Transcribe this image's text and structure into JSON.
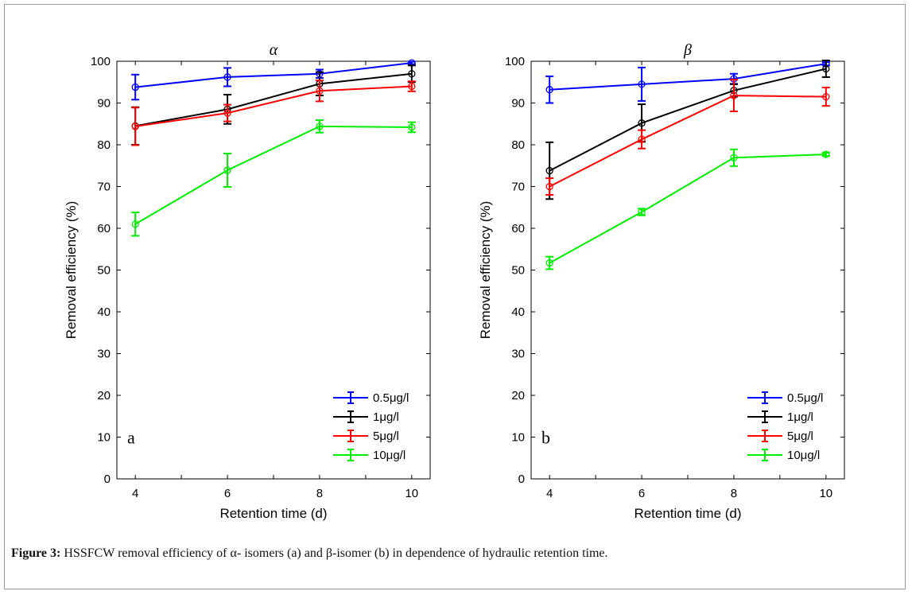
{
  "caption": {
    "label": "Figure 3:",
    "text": " HSSFCW removal efficiency of α- isomers (a) and β-isomer (b) in dependence of hydraulic retention time."
  },
  "colors": {
    "s1": "#0000ff",
    "s2": "#000000",
    "s3": "#ff0000",
    "s4": "#00ee00"
  },
  "chart_data": [
    {
      "type": "line",
      "title": "α",
      "panel_label": "a",
      "xlabel": "Retention time (d)",
      "ylabel": "Removal efficiency (%)",
      "xlim": [
        3.6,
        10.4
      ],
      "ylim": [
        0,
        100
      ],
      "xticks": [
        4,
        6,
        8,
        10
      ],
      "yticks": [
        0,
        10,
        20,
        30,
        40,
        50,
        60,
        70,
        80,
        90,
        100
      ],
      "legend_position": "bottom-right",
      "grid": false,
      "x": [
        4,
        6,
        8,
        10
      ],
      "series": [
        {
          "name": "0.5μg/l",
          "color": "#0000ff",
          "values": [
            93.8,
            96.2,
            97.0,
            99.6
          ],
          "errors": [
            3.0,
            2.2,
            1.0,
            0.3
          ]
        },
        {
          "name": "1μg/l",
          "color": "#000000",
          "values": [
            84.5,
            88.5,
            94.6,
            97.0
          ],
          "errors": [
            4.5,
            3.5,
            2.8,
            2.0
          ]
        },
        {
          "name": "5μg/l",
          "color": "#ff0000",
          "values": [
            84.4,
            87.6,
            92.9,
            94.0
          ],
          "errors": [
            4.5,
            2.0,
            2.5,
            1.2
          ]
        },
        {
          "name": "10μg/l",
          "color": "#00ee00",
          "values": [
            61.0,
            73.9,
            84.4,
            84.2
          ],
          "errors": [
            2.8,
            4.0,
            1.5,
            1.2
          ]
        }
      ]
    },
    {
      "type": "line",
      "title": "β",
      "panel_label": "b",
      "xlabel": "Retention time (d)",
      "ylabel": "Removal efficiency (%)",
      "xlim": [
        3.6,
        10.4
      ],
      "ylim": [
        0,
        100
      ],
      "xticks": [
        4,
        6,
        8,
        10
      ],
      "yticks": [
        0,
        10,
        20,
        30,
        40,
        50,
        60,
        70,
        80,
        90,
        100
      ],
      "legend_position": "bottom-right",
      "grid": false,
      "x": [
        4,
        6,
        8,
        10
      ],
      "series": [
        {
          "name": "0.5μg/l",
          "color": "#0000ff",
          "values": [
            93.2,
            94.5,
            95.8,
            99.4
          ],
          "errors": [
            3.2,
            4.0,
            1.2,
            0.4
          ]
        },
        {
          "name": "1μg/l",
          "color": "#000000",
          "values": [
            73.8,
            85.2,
            93.0,
            98.2
          ],
          "errors": [
            6.8,
            4.5,
            1.5,
            2.0
          ]
        },
        {
          "name": "5μg/l",
          "color": "#ff0000",
          "values": [
            70.0,
            81.3,
            91.8,
            91.5
          ],
          "errors": [
            2.0,
            2.2,
            3.8,
            2.2
          ]
        },
        {
          "name": "10μg/l",
          "color": "#00ee00",
          "values": [
            51.7,
            63.9,
            76.9,
            77.7
          ],
          "errors": [
            1.5,
            0.8,
            2.0,
            0.4
          ]
        }
      ]
    }
  ]
}
